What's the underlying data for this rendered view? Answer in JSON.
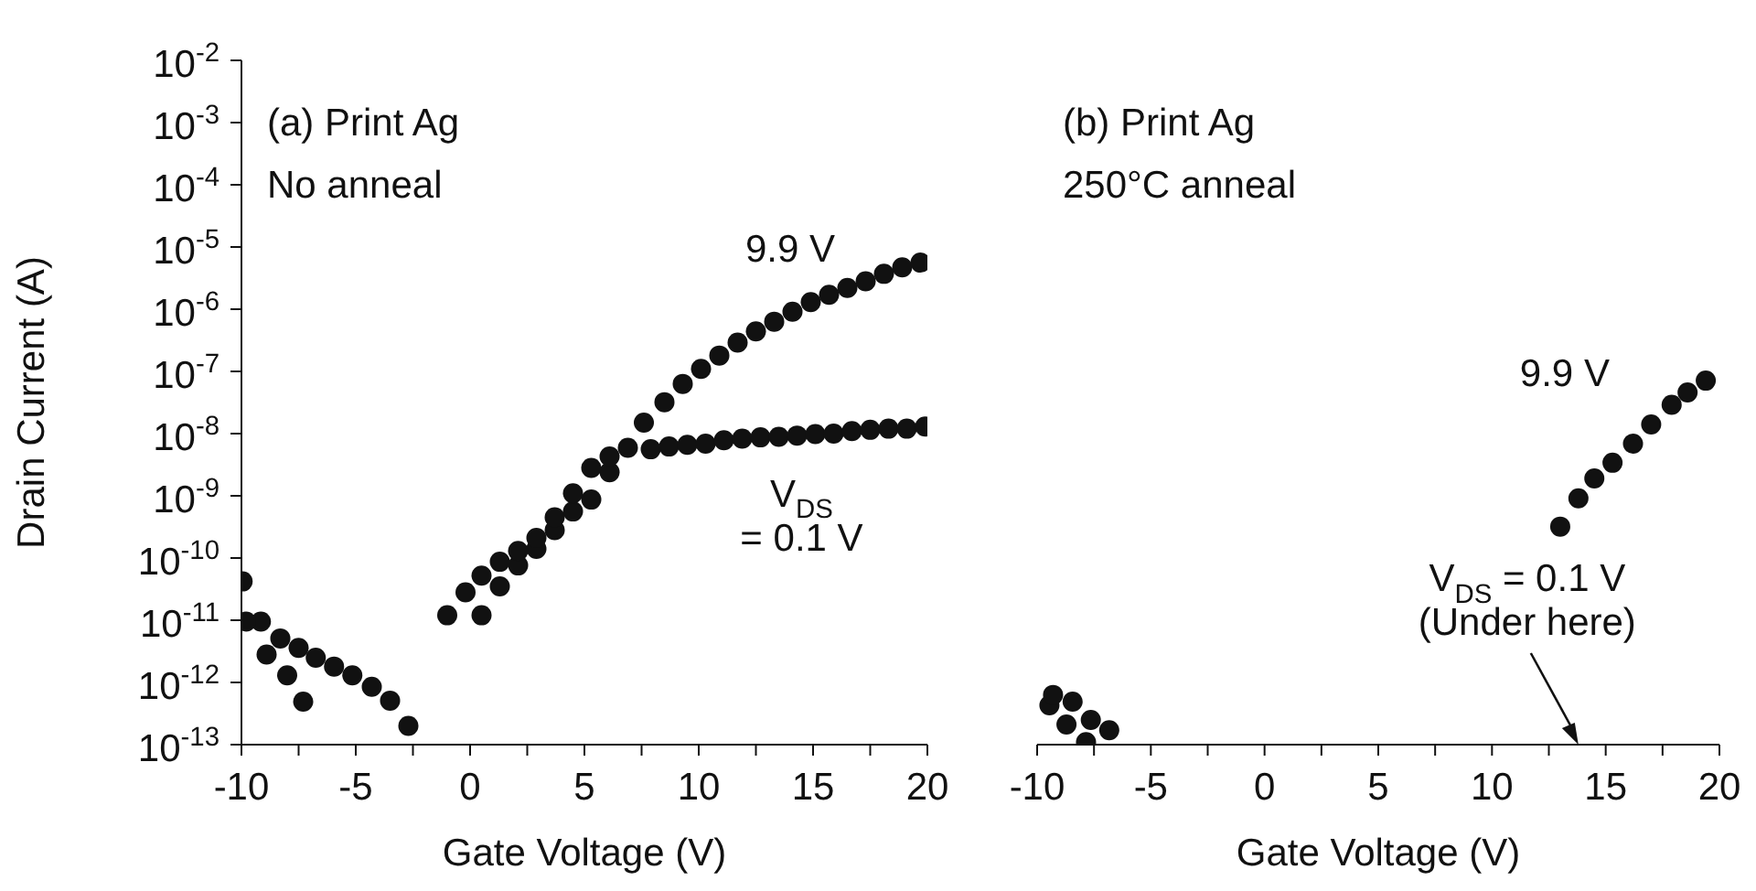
{
  "chart_data": [
    {
      "type": "scatter",
      "title": "(a) Print Ag",
      "subtitle": "No anneal",
      "xlabel": "Gate Voltage (V)",
      "ylabel": "Drain Current (A)",
      "log": "y",
      "marker": "circle",
      "xlim": [
        -10,
        20
      ],
      "xticks": [
        -10,
        {
          "value": -7.5,
          "label": null
        },
        -5,
        {
          "value": -2.5,
          "label": null
        },
        0,
        {
          "value": 2.5,
          "label": null
        },
        5,
        {
          "value": 7.5,
          "label": null
        },
        10,
        {
          "value": 12.5,
          "label": null
        },
        15,
        {
          "value": 17.5,
          "label": null
        },
        20
      ],
      "ylim": [
        1e-13,
        0.01
      ],
      "yticks": [
        {
          "value": 1e-13,
          "label": "10$^{-13}$"
        },
        {
          "value": 1e-12,
          "label": "10$^{-12}$"
        },
        {
          "value": 1e-11,
          "label": "10$^{-11}$"
        },
        {
          "value": 1e-10,
          "label": "10$^{-10}$"
        },
        {
          "value": 1e-09,
          "label": "10$^{-9}$"
        },
        {
          "value": 1e-08,
          "label": "10$^{-8}$"
        },
        {
          "value": 1e-07,
          "label": "10$^{-7}$"
        },
        {
          "value": 1e-06,
          "label": "10$^{-6}$"
        },
        {
          "value": 1e-05,
          "label": "10$^{-5}$"
        },
        {
          "value": 0.0001,
          "label": "10$^{-4}$"
        },
        {
          "value": 0.001,
          "label": "10$^{-3}$"
        },
        {
          "value": 0.01,
          "label": "10$^{-2}$"
        }
      ],
      "series": [
        {
          "color": "#111111",
          "x": [
            -9.95,
            -9.15,
            -8.3,
            -7.5,
            -6.75,
            -5.95,
            -5.15,
            -4.3,
            -3.5,
            -2.7,
            0.5,
            1.3,
            2.1,
            2.9,
            3.7,
            4.5,
            5.3,
            6.1,
            6.9,
            7.6,
            8.5,
            9.3,
            10.1,
            10.9,
            11.7,
            12.5,
            13.3,
            14.1,
            14.9,
            15.7,
            16.5,
            17.3,
            18.1,
            18.9,
            19.7
          ],
          "values": [
            4.2e-11,
            9.5e-12,
            5.1e-12,
            3.6e-12,
            2.5e-12,
            1.8e-12,
            1.3e-12,
            8.5e-13,
            5.1e-13,
            2e-13,
            1.2e-11,
            3.5e-11,
            7.6e-11,
            1.4e-10,
            2.8e-10,
            5.6e-10,
            8.7e-10,
            2.4e-09,
            null,
            1.5e-08,
            3.2e-08,
            6.3e-08,
            1.1e-07,
            1.8e-07,
            2.9e-07,
            4.4e-07,
            6.3e-07,
            9.1e-07,
            1.3e-06,
            1.7e-06,
            2.2e-06,
            2.8e-06,
            3.7e-06,
            4.7e-06,
            5.6e-06
          ]
        },
        {
          "color": "#111111",
          "x": [
            -9.8,
            -8.9,
            -8.0,
            -7.3,
            -1,
            -0.2,
            0.5,
            1.3,
            2.1,
            2.9,
            3.7,
            4.5,
            5.3,
            6.1,
            6.9,
            7.9,
            8.7,
            9.5,
            10.3,
            11.1,
            11.9,
            12.7,
            13.5,
            14.3,
            15.1,
            15.9,
            16.7,
            17.5,
            18.3,
            19.1,
            19.9
          ],
          "values": [
            9.5e-12,
            2.8e-12,
            1.3e-12,
            4.9e-13,
            1.2e-11,
            2.8e-11,
            5.2e-11,
            8.7e-11,
            1.3e-10,
            2.1e-10,
            4.5e-10,
            1.1e-09,
            2.8e-09,
            4.3e-09,
            5.9e-09,
            5.6e-09,
            6.2e-09,
            6.6e-09,
            6.9e-09,
            7.8e-09,
            8.3e-09,
            8.7e-09,
            8.9e-09,
            9.3e-09,
            9.8e-09,
            1e-08,
            1.1e-08,
            1.15e-08,
            1.2e-08,
            1.2e-08,
            1.3e-08
          ]
        }
      ],
      "annotations": [
        "9.9 V",
        "V$_{DS}$\n= 0.1 V"
      ]
    },
    {
      "type": "scatter",
      "title": "(b) Print Ag",
      "subtitle": "250°C anneal",
      "xlabel": "Gate Voltage (V)",
      "log": "y",
      "marker": "circle",
      "tick_labels": "x",
      "xlim": [
        -10,
        20
      ],
      "xticks": [
        -10,
        {
          "value": -7.5,
          "label": null
        },
        -5,
        {
          "value": -2.5,
          "label": null
        },
        0,
        {
          "value": 2.5,
          "label": null
        },
        5,
        {
          "value": 7.5,
          "label": null
        },
        10,
        {
          "value": 12.5,
          "label": null
        },
        15,
        {
          "value": 17.5,
          "label": null
        },
        20
      ],
      "ylim": [
        1e-13,
        0.01
      ],
      "yticks": [
        {
          "value": 1e-13,
          "label": null
        },
        {
          "value": 1e-12,
          "label": null
        },
        {
          "value": 1e-11,
          "label": null
        },
        {
          "value": 1e-10,
          "label": null
        },
        {
          "value": 1e-09,
          "label": null
        },
        {
          "value": 1e-08,
          "label": null
        },
        {
          "value": 1e-07,
          "label": null
        },
        {
          "value": 1e-06,
          "label": null
        },
        {
          "value": 1e-05,
          "label": null
        },
        {
          "value": 0.0001,
          "label": null
        },
        {
          "value": 0.001,
          "label": null
        },
        {
          "value": 0.01,
          "label": null
        }
      ],
      "series": [
        {
          "color": "#111111",
          "x": [
            -9.46,
            -8.71,
            -7.85,
            -6.83,
            13.0,
            13.8,
            14.5,
            15.3,
            16.2,
            17.0,
            17.9,
            18.6,
            19.4
          ],
          "values": [
            4.3e-13,
            2.1e-13,
            1.1e-13,
            1.7e-13,
            3.2e-10,
            9.1e-10,
            1.9e-09,
            3.4e-09,
            6.9e-09,
            1.4e-08,
            2.9e-08,
            4.6e-08,
            7.1e-08
          ]
        },
        {
          "color": "#111111",
          "x": [
            -9.3,
            -8.44,
            -7.64
          ],
          "values": [
            6.3e-13,
            4.9e-13,
            2.5e-13
          ]
        }
      ],
      "annotations": [
        "9.9 V",
        "V$_{DS}$ = 0.1 V\n(Under here)"
      ]
    }
  ]
}
